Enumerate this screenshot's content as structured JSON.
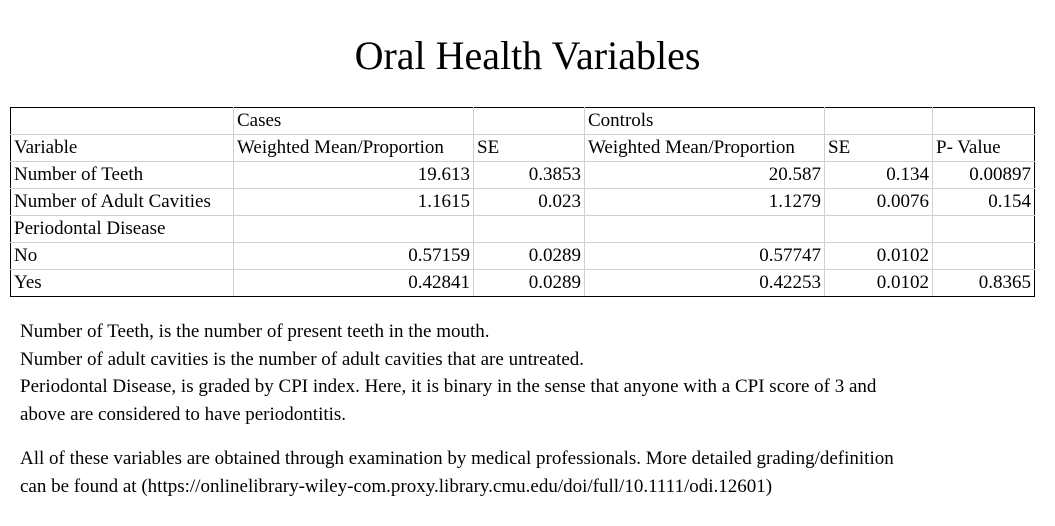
{
  "title": "Oral Health Variables",
  "table": {
    "group_headers": [
      "",
      "Cases",
      "",
      "Controls",
      "",
      ""
    ],
    "column_headers": [
      "Variable",
      "Weighted Mean/Proportion",
      "SE",
      "Weighted Mean/Proportion",
      "SE",
      "P- Value"
    ],
    "rows": [
      [
        "Number of Teeth",
        "19.613",
        "0.3853",
        "20.587",
        "0.134",
        "0.00897"
      ],
      [
        "Number of Adult Cavities",
        "1.1615",
        "0.023",
        "1.1279",
        "0.0076",
        "0.154"
      ],
      [
        "Periodontal Disease",
        "",
        "",
        "",
        "",
        ""
      ],
      [
        "No",
        "0.57159",
        "0.0289",
        "0.57747",
        "0.0102",
        ""
      ],
      [
        "Yes",
        "0.42841",
        "0.0289",
        "0.42253",
        "0.0102",
        "0.8365"
      ]
    ]
  },
  "notes": {
    "line1": "Number of Teeth, is the number of present teeth in the mouth.",
    "line2": "Number of adult cavities is the number of adult cavities that are untreated.",
    "line3": "Periodontal Disease, is graded by CPI index. Here, it is binary in the sense that anyone with a CPI score of 3 and",
    "line4": "above are considered to have periodontitis.",
    "line5": "All of these variables are obtained through examination by medical professionals. More detailed grading/definition",
    "line6": "can be found at (https://onlinelibrary-wiley-com.proxy.library.cmu.edu/doi/full/10.1111/odi.12601)"
  }
}
